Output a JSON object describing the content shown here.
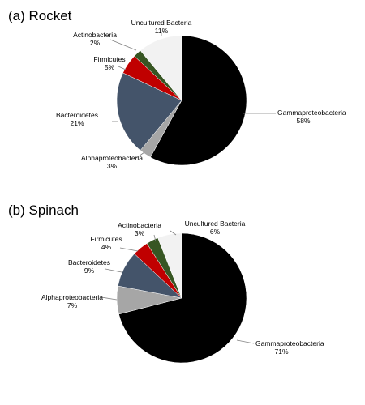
{
  "chart_data": [
    {
      "type": "pie",
      "title": "(a) Rocket",
      "start_angle": "12 o'clock",
      "direction": "clockwise",
      "slices": [
        {
          "name": "Gammaproteobacteria",
          "value": 58,
          "pct": "58%",
          "color": "#000000"
        },
        {
          "name": "Alphaproteobacteria",
          "value": 3,
          "pct": "3%",
          "color": "#a6a6a6"
        },
        {
          "name": "Bacteroidetes",
          "value": 21,
          "pct": "21%",
          "color": "#44546a"
        },
        {
          "name": "Firmicutes",
          "value": 5,
          "pct": "5%",
          "color": "#c00000"
        },
        {
          "name": "Actinobacteria",
          "value": 2,
          "pct": "2%",
          "color": "#375623"
        },
        {
          "name": "Uncultured Bacteria",
          "value": 11,
          "pct": "11%",
          "color": "#f2f2f2"
        }
      ]
    },
    {
      "type": "pie",
      "title": "(b) Spinach",
      "start_angle": "12 o'clock",
      "direction": "clockwise",
      "slices": [
        {
          "name": "Gammaproteobacteria",
          "value": 71,
          "pct": "71%",
          "color": "#000000"
        },
        {
          "name": "Alphaproteobacteria",
          "value": 7,
          "pct": "7%",
          "color": "#a6a6a6"
        },
        {
          "name": "Bacteroidetes",
          "value": 9,
          "pct": "9%",
          "color": "#44546a"
        },
        {
          "name": "Firmicutes",
          "value": 4,
          "pct": "4%",
          "color": "#c00000"
        },
        {
          "name": "Actinobacteria",
          "value": 3,
          "pct": "3%",
          "color": "#375623"
        },
        {
          "name": "Uncultured Bacteria",
          "value": 6,
          "pct": "6%",
          "color": "#f2f2f2"
        }
      ]
    }
  ]
}
